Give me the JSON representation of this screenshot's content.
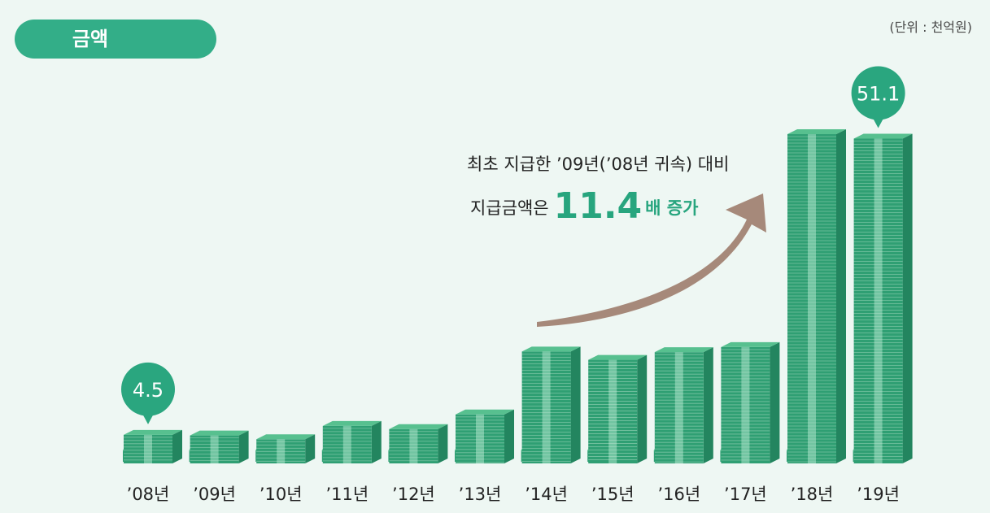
{
  "header": {
    "title": "금액",
    "unit": "(단위 : 천억원)"
  },
  "annotation": {
    "line1": "최초 지급한 ’09년(’08년 귀속) 대비",
    "line2_prefix": "지급금액은",
    "line2_value": "11.4",
    "line2_suffix": "배 증가"
  },
  "colors": {
    "money_front": "#2f9f73",
    "money_top": "#57c08f",
    "money_band": "#8ad2b1",
    "bubble": "#2aa67f",
    "arrow": "#a6897a",
    "title_bg": "#33ae88"
  },
  "chart_data": {
    "type": "bar",
    "categories": [
      "’08년",
      "’09년",
      "’10년",
      "’11년",
      "’12년",
      "’13년",
      "’14년",
      "’15년",
      "’16년",
      "’17년",
      "’18년",
      "’19년"
    ],
    "values": [
      4.5,
      4.4,
      3.8,
      5.9,
      5.4,
      7.7,
      17.6,
      16.3,
      17.5,
      18.3,
      51.8,
      51.1
    ],
    "data_labels": [
      {
        "category": "’08년",
        "text": "4.5"
      },
      {
        "category": "’19년",
        "text": "51.1"
      }
    ],
    "ylabel": "",
    "ylim": [
      0,
      55
    ]
  }
}
